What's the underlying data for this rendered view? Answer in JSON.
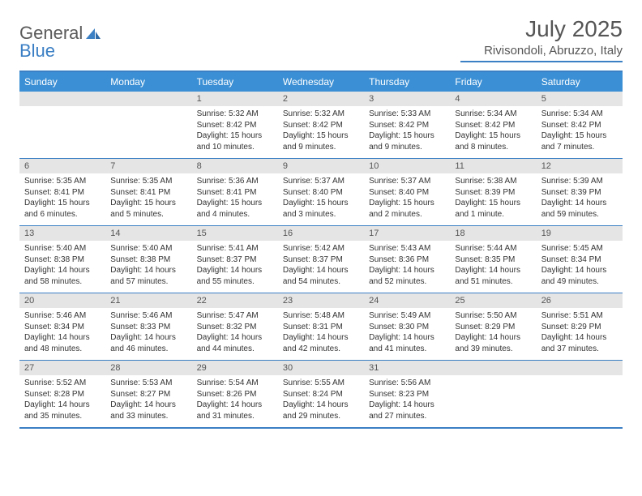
{
  "brand": {
    "part1": "General",
    "part2": "Blue"
  },
  "title": "July 2025",
  "location": "Rivisondoli, Abruzzo, Italy",
  "colors": {
    "accent": "#3b7fc4",
    "header_bg": "#3b8fd4",
    "daynum_bg": "#e5e5e5",
    "text": "#333333",
    "muted": "#555555"
  },
  "weekdays": [
    "Sunday",
    "Monday",
    "Tuesday",
    "Wednesday",
    "Thursday",
    "Friday",
    "Saturday"
  ],
  "calendar": {
    "first_weekday_index": 2,
    "days": [
      {
        "n": 1,
        "sunrise": "5:32 AM",
        "sunset": "8:42 PM",
        "daylight": "15 hours and 10 minutes."
      },
      {
        "n": 2,
        "sunrise": "5:32 AM",
        "sunset": "8:42 PM",
        "daylight": "15 hours and 9 minutes."
      },
      {
        "n": 3,
        "sunrise": "5:33 AM",
        "sunset": "8:42 PM",
        "daylight": "15 hours and 9 minutes."
      },
      {
        "n": 4,
        "sunrise": "5:34 AM",
        "sunset": "8:42 PM",
        "daylight": "15 hours and 8 minutes."
      },
      {
        "n": 5,
        "sunrise": "5:34 AM",
        "sunset": "8:42 PM",
        "daylight": "15 hours and 7 minutes."
      },
      {
        "n": 6,
        "sunrise": "5:35 AM",
        "sunset": "8:41 PM",
        "daylight": "15 hours and 6 minutes."
      },
      {
        "n": 7,
        "sunrise": "5:35 AM",
        "sunset": "8:41 PM",
        "daylight": "15 hours and 5 minutes."
      },
      {
        "n": 8,
        "sunrise": "5:36 AM",
        "sunset": "8:41 PM",
        "daylight": "15 hours and 4 minutes."
      },
      {
        "n": 9,
        "sunrise": "5:37 AM",
        "sunset": "8:40 PM",
        "daylight": "15 hours and 3 minutes."
      },
      {
        "n": 10,
        "sunrise": "5:37 AM",
        "sunset": "8:40 PM",
        "daylight": "15 hours and 2 minutes."
      },
      {
        "n": 11,
        "sunrise": "5:38 AM",
        "sunset": "8:39 PM",
        "daylight": "15 hours and 1 minute."
      },
      {
        "n": 12,
        "sunrise": "5:39 AM",
        "sunset": "8:39 PM",
        "daylight": "14 hours and 59 minutes."
      },
      {
        "n": 13,
        "sunrise": "5:40 AM",
        "sunset": "8:38 PM",
        "daylight": "14 hours and 58 minutes."
      },
      {
        "n": 14,
        "sunrise": "5:40 AM",
        "sunset": "8:38 PM",
        "daylight": "14 hours and 57 minutes."
      },
      {
        "n": 15,
        "sunrise": "5:41 AM",
        "sunset": "8:37 PM",
        "daylight": "14 hours and 55 minutes."
      },
      {
        "n": 16,
        "sunrise": "5:42 AM",
        "sunset": "8:37 PM",
        "daylight": "14 hours and 54 minutes."
      },
      {
        "n": 17,
        "sunrise": "5:43 AM",
        "sunset": "8:36 PM",
        "daylight": "14 hours and 52 minutes."
      },
      {
        "n": 18,
        "sunrise": "5:44 AM",
        "sunset": "8:35 PM",
        "daylight": "14 hours and 51 minutes."
      },
      {
        "n": 19,
        "sunrise": "5:45 AM",
        "sunset": "8:34 PM",
        "daylight": "14 hours and 49 minutes."
      },
      {
        "n": 20,
        "sunrise": "5:46 AM",
        "sunset": "8:34 PM",
        "daylight": "14 hours and 48 minutes."
      },
      {
        "n": 21,
        "sunrise": "5:46 AM",
        "sunset": "8:33 PM",
        "daylight": "14 hours and 46 minutes."
      },
      {
        "n": 22,
        "sunrise": "5:47 AM",
        "sunset": "8:32 PM",
        "daylight": "14 hours and 44 minutes."
      },
      {
        "n": 23,
        "sunrise": "5:48 AM",
        "sunset": "8:31 PM",
        "daylight": "14 hours and 42 minutes."
      },
      {
        "n": 24,
        "sunrise": "5:49 AM",
        "sunset": "8:30 PM",
        "daylight": "14 hours and 41 minutes."
      },
      {
        "n": 25,
        "sunrise": "5:50 AM",
        "sunset": "8:29 PM",
        "daylight": "14 hours and 39 minutes."
      },
      {
        "n": 26,
        "sunrise": "5:51 AM",
        "sunset": "8:29 PM",
        "daylight": "14 hours and 37 minutes."
      },
      {
        "n": 27,
        "sunrise": "5:52 AM",
        "sunset": "8:28 PM",
        "daylight": "14 hours and 35 minutes."
      },
      {
        "n": 28,
        "sunrise": "5:53 AM",
        "sunset": "8:27 PM",
        "daylight": "14 hours and 33 minutes."
      },
      {
        "n": 29,
        "sunrise": "5:54 AM",
        "sunset": "8:26 PM",
        "daylight": "14 hours and 31 minutes."
      },
      {
        "n": 30,
        "sunrise": "5:55 AM",
        "sunset": "8:24 PM",
        "daylight": "14 hours and 29 minutes."
      },
      {
        "n": 31,
        "sunrise": "5:56 AM",
        "sunset": "8:23 PM",
        "daylight": "14 hours and 27 minutes."
      }
    ]
  },
  "labels": {
    "sunrise_prefix": "Sunrise: ",
    "sunset_prefix": "Sunset: ",
    "daylight_prefix": "Daylight: "
  }
}
